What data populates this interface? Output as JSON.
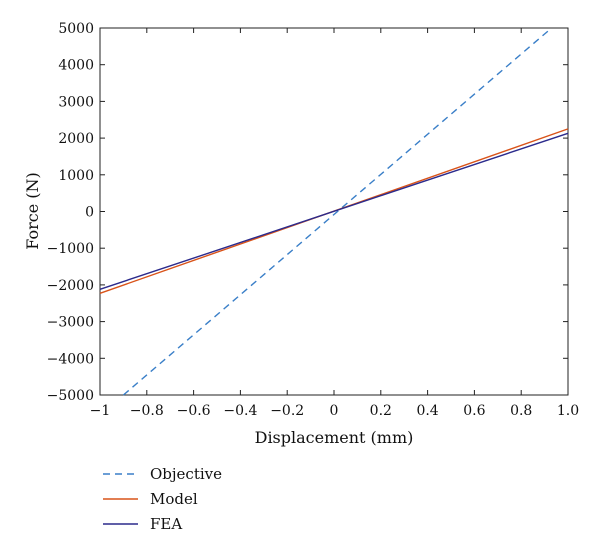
{
  "chart_data": {
    "type": "line",
    "title": "",
    "xlabel": "Displacement (mm)",
    "ylabel": "Force (N)",
    "xlim": [
      -1,
      1
    ],
    "ylim": [
      -5000,
      5000
    ],
    "x_ticks": [
      -1,
      -0.8,
      -0.6,
      -0.4,
      -0.2,
      0,
      0.2,
      0.4,
      0.6,
      0.8,
      1.0
    ],
    "x_tick_labels": [
      "−1",
      "−0.8",
      "−0.6",
      "−0.4",
      "−0.2",
      "0",
      "0.2",
      "0.4",
      "0.6",
      "0.8",
      "1.0"
    ],
    "y_ticks": [
      -5000,
      -4000,
      -3000,
      -2000,
      -1000,
      0,
      1000,
      2000,
      3000,
      4000,
      5000
    ],
    "y_tick_labels": [
      "−5000",
      "−4000",
      "−3000",
      "−2000",
      "−1000",
      "0",
      "1000",
      "2000",
      "3000",
      "4000",
      "5000"
    ],
    "grid": false,
    "legend_position": "bottom-left, below plot",
    "series": [
      {
        "name": "Objective",
        "color": "#3a7fc8",
        "dash": "dashed",
        "x": [
          -0.9,
          0.93
        ],
        "y": [
          -5000,
          5000
        ]
      },
      {
        "name": "Model",
        "color": "#d95319",
        "dash": "solid",
        "x": [
          -1,
          1
        ],
        "y": [
          -2230,
          2250
        ]
      },
      {
        "name": "FEA",
        "color": "#2b2a8c",
        "dash": "solid",
        "x": [
          -1,
          1
        ],
        "y": [
          -2120,
          2130
        ]
      }
    ]
  }
}
